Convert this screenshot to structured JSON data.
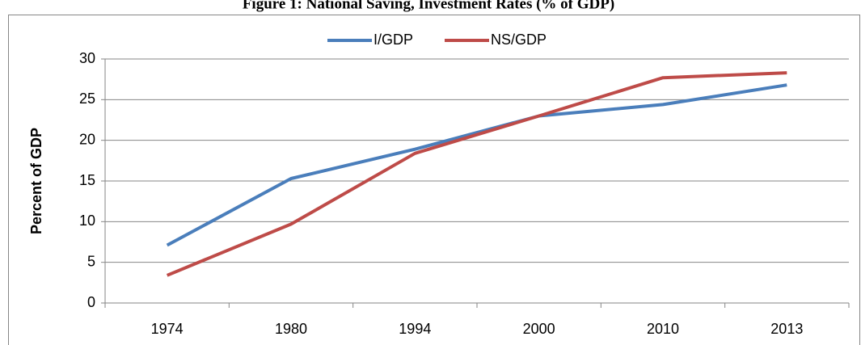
{
  "chart_data": {
    "type": "line",
    "title": "Figure 1: National Saving, Investment Rates (% of GDP)",
    "y_label": "Percent of GDP",
    "categories": [
      "1974",
      "1980",
      "1994",
      "2000",
      "2010",
      "2013"
    ],
    "series": [
      {
        "name": "I/GDP",
        "color": "#4a7ebb",
        "values": [
          7.1,
          15.3,
          18.9,
          23.0,
          24.4,
          26.8
        ]
      },
      {
        "name": "NS/GDP",
        "color": "#be4b48",
        "values": [
          3.4,
          9.7,
          18.4,
          23.0,
          27.7,
          28.3
        ]
      }
    ],
    "ylim": [
      0,
      30
    ],
    "yticks": [
      0,
      5,
      10,
      15,
      20,
      25,
      30
    ],
    "grid": true,
    "legend": "top"
  }
}
